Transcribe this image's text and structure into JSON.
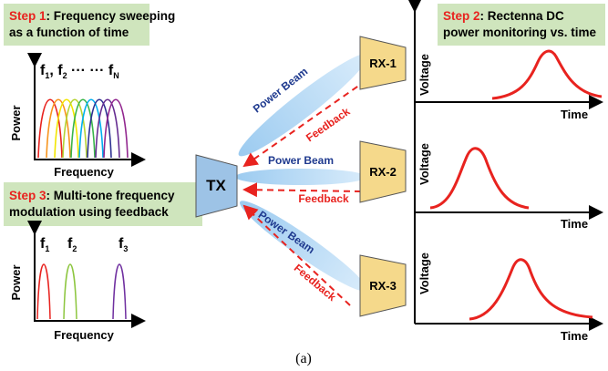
{
  "step1": {
    "label": "Step 1",
    "lines": [
      ": Frequency sweeping",
      "as a function of time"
    ]
  },
  "step2": {
    "label": "Step 2",
    "lines": [
      ": Rectenna DC",
      "power monitoring vs. time"
    ]
  },
  "step3": {
    "label": "Step 3",
    "lines": [
      ": Multi-tone frequency",
      "modulation using feedback"
    ]
  },
  "sweep_plot": {
    "y_label": "Power",
    "x_label": "Frequency",
    "freq_label": [
      {
        "base": "f",
        "sub": "1"
      },
      {
        "base": ", f",
        "sub": "2"
      },
      {
        "base": " ··· ··· f",
        "sub": "N"
      }
    ]
  },
  "tone_plot": {
    "y_label": "Power",
    "x_label": "Frequency",
    "tones": [
      {
        "base": "f",
        "sub": "1"
      },
      {
        "base": "f",
        "sub": "2"
      },
      {
        "base": "f",
        "sub": "3"
      }
    ]
  },
  "tx": "TX",
  "receivers": [
    "RX-1",
    "RX-2",
    "RX-3"
  ],
  "beam_label": [
    "Power Beam",
    "Power Beam",
    "Power Beam"
  ],
  "feedback_label": [
    "Feedback",
    "Feedback",
    "Feedback"
  ],
  "voltage_plots": [
    {
      "y_label": "Voltage",
      "x_label": "Time"
    },
    {
      "y_label": "Voltage",
      "x_label": "Time"
    },
    {
      "y_label": "Voltage",
      "x_label": "Time"
    }
  ],
  "caption": "(a)"
}
